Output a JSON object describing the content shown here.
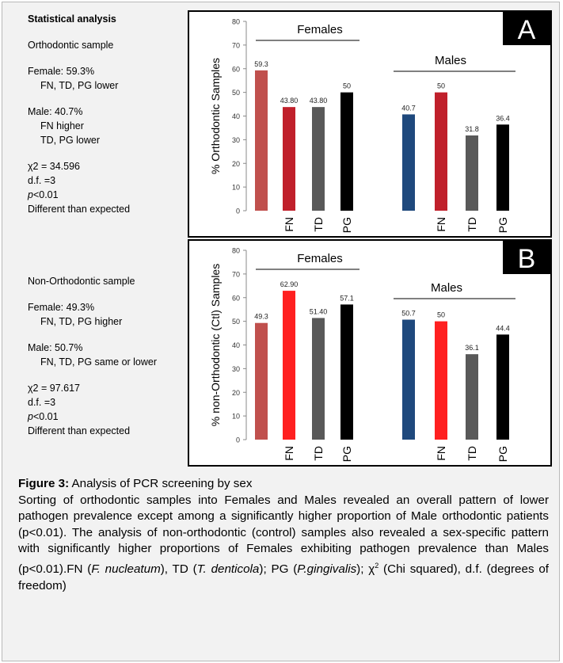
{
  "left_text": {
    "heading": "Statistical analysis",
    "ortho": {
      "title": "Orthodontic sample",
      "female": "Female: 59.3%",
      "female_detail": "FN, TD, PG lower",
      "male": "Male: 40.7%",
      "male_detail_1": "FN higher",
      "male_detail_2": "TD, PG lower",
      "chi": "χ2 = 34.596",
      "df": "d.f. =3",
      "p_prefix": "p",
      "p_suffix": "<0.01",
      "conclusion": "Different than expected"
    },
    "nonortho": {
      "title": "Non-Orthodontic sample",
      "female": "Female: 49.3%",
      "female_detail": "FN, TD, PG higher",
      "male": "Male: 50.7%",
      "male_detail": "FN, TD, PG same or lower",
      "chi": "χ2 = 97.617",
      "df": "d.f. =3",
      "p_prefix": "p",
      "p_suffix": "<0.01",
      "conclusion": "Different than expected"
    }
  },
  "chart_data": [
    {
      "type": "bar",
      "panel_letter": "A",
      "ylabel": "% Orthodontic Samples",
      "ylim": [
        0,
        80
      ],
      "yticks": [
        0,
        10,
        20,
        30,
        40,
        50,
        60,
        70,
        80
      ],
      "group_labels": [
        "Females",
        "Males"
      ],
      "categories": [
        "",
        "FN",
        "TD",
        "PG",
        "",
        "FN",
        "TD",
        "PG"
      ],
      "values": [
        59.3,
        43.8,
        43.8,
        50,
        40.7,
        50,
        31.8,
        36.4
      ],
      "value_labels": [
        "59.3",
        "43.80",
        "43.80",
        "50",
        "40.7",
        "50",
        "31.8",
        "36.4"
      ],
      "colors": [
        "#c0504d",
        "#c0202b",
        "#595959",
        "#000000",
        "#1f497d",
        "#c0202b",
        "#595959",
        "#000000"
      ]
    },
    {
      "type": "bar",
      "panel_letter": "B",
      "ylabel": "% non-Orthodontic (Ctl) Samples",
      "ylim": [
        0,
        80
      ],
      "yticks": [
        0,
        10,
        20,
        30,
        40,
        50,
        60,
        70,
        80
      ],
      "group_labels": [
        "Females",
        "Males"
      ],
      "categories": [
        "",
        "FN",
        "TD",
        "PG",
        "",
        "FN",
        "TD",
        "PG"
      ],
      "values": [
        49.3,
        62.9,
        51.4,
        57.1,
        50.7,
        50,
        36.1,
        44.4
      ],
      "value_labels": [
        "49.3",
        "62.90",
        "51.40",
        "57.1",
        "50.7",
        "50",
        "36.1",
        "44.4"
      ],
      "colors": [
        "#c0504d",
        "#ff2020",
        "#595959",
        "#000000",
        "#1f497d",
        "#ff2020",
        "#595959",
        "#000000"
      ]
    }
  ],
  "caption": {
    "title": "Figure 3:",
    "title_rest": " Analysis of PCR screening by sex",
    "body_1": "Sorting of orthodontic samples into Females and Males revealed an overall pattern of lower pathogen prevalence except among a significantly higher proportion of Male orthodontic patients (p<0.01). The analysis of non-orthodontic (control) samples also revealed a sex-specific pattern with significantly higher proportions of Females exhibiting pathogen prevalence than Males (p<0.01).FN (",
    "fn_italic": "F. nucleatum",
    "body_2": "), TD (",
    "td_italic": "T. denticola",
    "body_3": "); PG (",
    "pg_italic": "P.gingivalis",
    "body_4": "); χ",
    "sup": "2",
    "body_5": " (Chi squared), d.f. (degrees of freedom)"
  }
}
